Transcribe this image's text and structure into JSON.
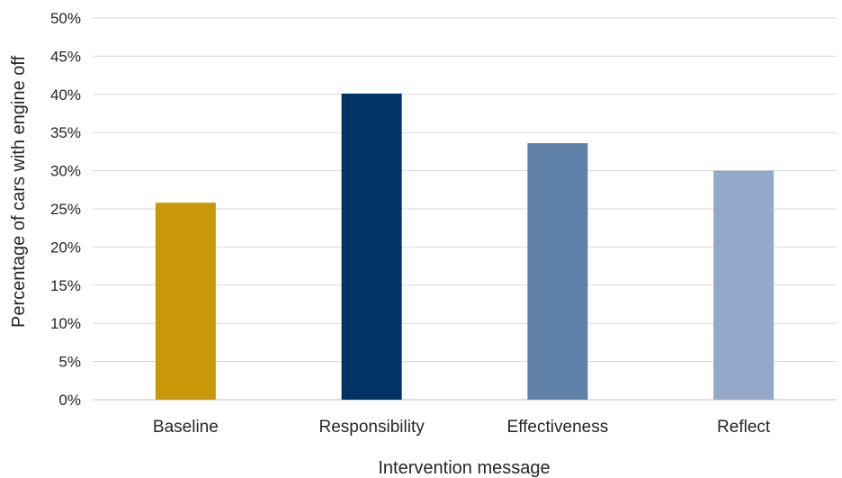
{
  "chart_data": {
    "type": "bar",
    "title": "",
    "xlabel": "Intervention message",
    "ylabel": "Percentage of cars with engine off",
    "categories": [
      "Baseline",
      "Responsibility",
      "Effectiveness",
      "Reflect"
    ],
    "values": [
      25.8,
      40.1,
      33.6,
      30.0
    ],
    "ylim": [
      0,
      50
    ],
    "yticks": [
      "0%",
      "5%",
      "10%",
      "15%",
      "20%",
      "25%",
      "30%",
      "35%",
      "40%",
      "45%",
      "50%"
    ],
    "grid": true,
    "legend": "none",
    "colors": [
      "#C89808",
      "#013364",
      "#6082A8",
      "#94A9C9"
    ]
  }
}
